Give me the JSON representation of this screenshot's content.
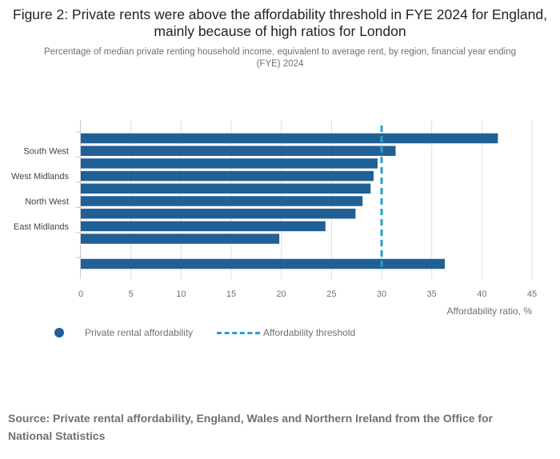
{
  "title": "Figure 2: Private rents were above the affordability threshold in FYE 2024 for England, mainly because of high ratios for London",
  "subtitle": "Percentage of median private renting household income, equivalent to average rent, by region, financial year ending (FYE) 2024",
  "legend": {
    "series_label": "Private rental affordability",
    "threshold_label": "Affordability threshold"
  },
  "source": "Source: Private rental affordability, England, Wales and Northern Ireland from the Office for National Statistics",
  "colors": {
    "bar": "#206095",
    "threshold": "#27a0cc",
    "grid": "#e0e0e0",
    "text": "#707070"
  },
  "chart_data": {
    "type": "bar",
    "orientation": "horizontal",
    "categories": [
      "",
      "South West",
      "",
      "West Midlands",
      "",
      "North West",
      "",
      "East Midlands",
      "",
      "",
      ""
    ],
    "values": [
      41.6,
      31.4,
      29.6,
      29.2,
      28.9,
      28.1,
      27.4,
      24.4,
      19.8,
      null,
      36.3
    ],
    "series_name": "Private rental affordability",
    "threshold": 30,
    "threshold_label": "Affordability threshold",
    "xlim": [
      0,
      45
    ],
    "xticks": [
      0,
      5,
      10,
      15,
      20,
      25,
      30,
      35,
      40,
      45
    ],
    "xlabel": "Affordability ratio, %",
    "ylabel": "",
    "grid": true
  }
}
